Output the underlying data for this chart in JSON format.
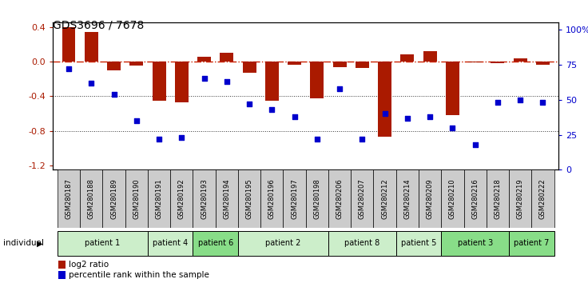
{
  "title": "GDS3696 / 7678",
  "samples": [
    "GSM280187",
    "GSM280188",
    "GSM280189",
    "GSM280190",
    "GSM280191",
    "GSM280192",
    "GSM280193",
    "GSM280194",
    "GSM280195",
    "GSM280196",
    "GSM280197",
    "GSM280198",
    "GSM280206",
    "GSM280207",
    "GSM280212",
    "GSM280214",
    "GSM280209",
    "GSM280210",
    "GSM280216",
    "GSM280218",
    "GSM280219",
    "GSM280222"
  ],
  "log2_ratio": [
    0.4,
    0.34,
    -0.1,
    -0.05,
    -0.45,
    -0.47,
    0.06,
    0.1,
    -0.13,
    -0.45,
    -0.04,
    -0.42,
    -0.06,
    -0.07,
    -0.87,
    0.08,
    0.12,
    -0.62,
    -0.01,
    -0.02,
    0.04,
    -0.04
  ],
  "percentile_rank": [
    72,
    62,
    54,
    35,
    22,
    23,
    65,
    63,
    47,
    43,
    38,
    22,
    58,
    22,
    40,
    37,
    38,
    30,
    18,
    48,
    50,
    48
  ],
  "patient_groups": [
    {
      "label": "patient 1",
      "start": 0,
      "end": 3,
      "color": "#cceeca"
    },
    {
      "label": "patient 4",
      "start": 4,
      "end": 5,
      "color": "#cceeca"
    },
    {
      "label": "patient 6",
      "start": 6,
      "end": 7,
      "color": "#88dd88"
    },
    {
      "label": "patient 2",
      "start": 8,
      "end": 11,
      "color": "#cceeca"
    },
    {
      "label": "patient 8",
      "start": 12,
      "end": 14,
      "color": "#cceeca"
    },
    {
      "label": "patient 5",
      "start": 15,
      "end": 16,
      "color": "#cceeca"
    },
    {
      "label": "patient 3",
      "start": 17,
      "end": 19,
      "color": "#88dd88"
    },
    {
      "label": "patient 7",
      "start": 20,
      "end": 21,
      "color": "#88dd88"
    }
  ],
  "bar_color": "#aa1a00",
  "scatter_color": "#0000cc",
  "ref_line_color": "#cc2200",
  "grid_line_color": "#333333",
  "bg_color": "#ffffff",
  "sample_box_color": "#cccccc",
  "ylim_left": [
    -1.25,
    0.45
  ],
  "ylim_right": [
    0,
    105
  ],
  "yticks_left": [
    0.4,
    0.0,
    -0.4,
    -0.8,
    -1.2
  ],
  "yticks_right": [
    0,
    25,
    50,
    75,
    100
  ],
  "ytick_labels_right": [
    "0",
    "25",
    "50",
    "75",
    "100%"
  ]
}
